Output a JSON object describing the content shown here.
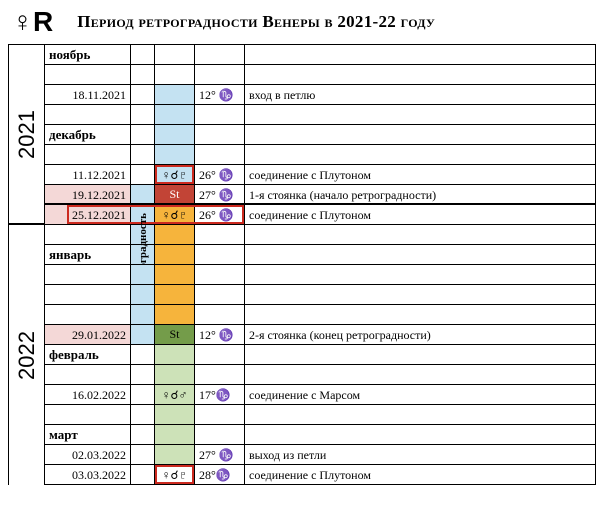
{
  "header": {
    "symbol": "♀R",
    "title": "Период ретроградности Венеры в 2021-22 году"
  },
  "years": {
    "y2021": "2021",
    "y2022": "2022"
  },
  "retro_label": "ретроградность",
  "months": {
    "nov": "ноябрь",
    "dec": "декабрь",
    "jan": "январь",
    "feb": "февраль",
    "mar": "март"
  },
  "rows": {
    "r1": {
      "date": "18.11.2021",
      "deg": "12° ♑",
      "desc": "вход в петлю"
    },
    "r2": {
      "date": "11.12.2021",
      "event": "♀☌♇",
      "deg": "26° ♑",
      "desc": "соединение с Плутоном"
    },
    "r3": {
      "date": "19.12.2021",
      "event": "St",
      "deg": "27° ♑",
      "desc": "1-я стоянка (начало ретроградности)"
    },
    "r4": {
      "date": "25.12.2021",
      "event": "♀☌♇",
      "deg": "26° ♑",
      "desc": "соединение с Плутоном"
    },
    "r5": {
      "date": "29.01.2022",
      "event": "St",
      "deg": "12° ♑",
      "desc": "2-я стоянка (конец ретроградности)"
    },
    "r6": {
      "date": "16.02.2022",
      "event": "♀☌♂",
      "deg": "17°♑",
      "desc": "соединение с Марсом"
    },
    "r7": {
      "date": "02.03.2022",
      "deg": "27° ♑",
      "desc": "выход из петли"
    },
    "r8": {
      "date": "03.03.2022",
      "event": "♀☌♇",
      "deg": "28°♑",
      "desc": "соединение с Плутоном"
    }
  },
  "colors": {
    "blue": "#c4e2f2",
    "green": "#cde2b8",
    "orange": "#f6b43c",
    "darkgreen": "#749c4a",
    "red": "#c24436",
    "pink": "#f4d8d7",
    "redborder": "#cc2a1f"
  }
}
